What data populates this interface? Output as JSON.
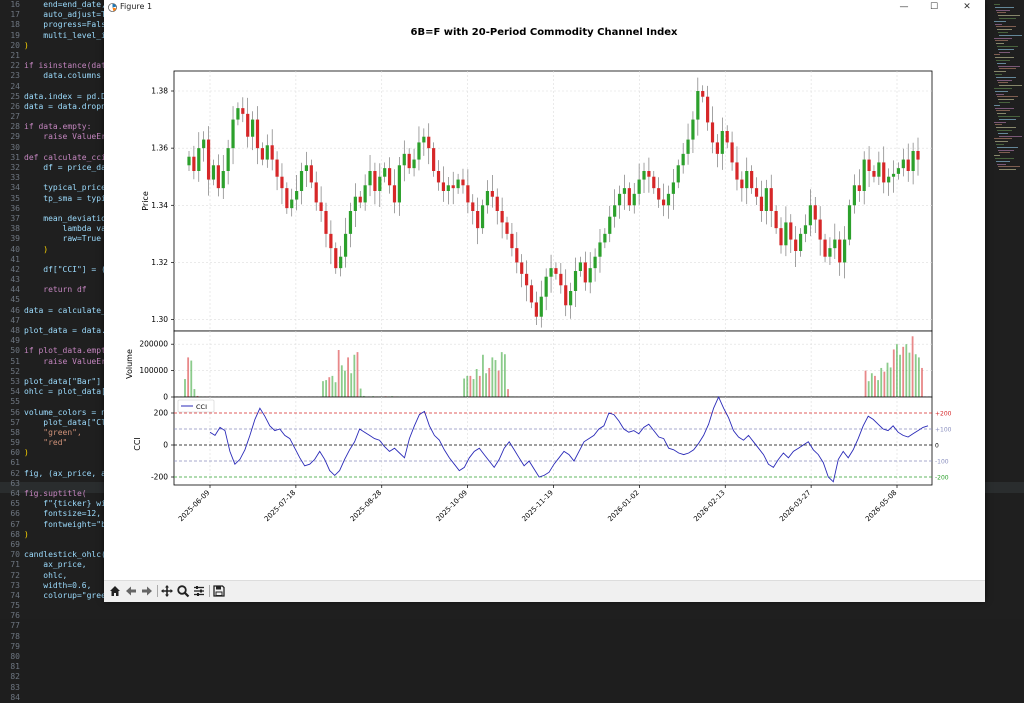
{
  "editor": {
    "line_numbers": [
      "16",
      "17",
      "18",
      "19",
      "20",
      "21",
      "22",
      "23",
      "24",
      "25",
      "26",
      "27",
      "28",
      "29",
      "30",
      "31",
      "32",
      "33",
      "34",
      "35",
      "36",
      "37",
      "38",
      "39",
      "40",
      "41",
      "42",
      "43",
      "44",
      "45",
      "46",
      "47",
      "48",
      "49",
      "50",
      "51",
      "52",
      "53",
      "54",
      "55",
      "56",
      "57",
      "58",
      "59",
      "60",
      "61",
      "62",
      "63",
      "64",
      "65",
      "66",
      "67",
      "68",
      "69",
      "70",
      "71",
      "72",
      "73",
      "74",
      "75",
      "76",
      "77",
      "78",
      "79",
      "80",
      "81",
      "82",
      "83",
      "84"
    ],
    "code_lines": [
      "    end=end_date,",
      "    auto_adjust=Tr",
      "    progress=False",
      "    multi_level_in",
      ")",
      "",
      "if isinstance(data",
      "    data.columns =",
      "",
      "data.index = pd.Da",
      "data = data.dropna",
      "",
      "if data.empty:",
      "    raise ValueErr",
      "",
      "def calculate_cci(",
      "    df = price_dat",
      "",
      "    typical_price",
      "    tp_sma = typic",
      "",
      "    mean_deviation",
      "        lambda val",
      "        raw=True",
      "    )",
      "",
      "    df[\"CCI\"] = (t",
      "",
      "    return df",
      "",
      "data = calculate_c",
      "",
      "plot_data = data.d",
      "",
      "if plot_data.empty",
      "    raise ValueErr",
      "",
      "plot_data[\"Bar\"] =",
      "ohlc = plot_data[[",
      "",
      "volume_colors = np",
      "    plot_data[\"Clo",
      "    \"green\",",
      "    \"red\"",
      ")",
      "",
      "fig, (ax_price, ax",
      "",
      "fig.suptitle(",
      "    f\"{ticker} wit",
      "    fontsize=12,",
      "    fontweight=\"bo",
      ")",
      "",
      "candlestick_ohlc(",
      "    ax_price,",
      "    ohlc,",
      "    width=0.6,",
      "    colorup=\"green\","
    ]
  },
  "window": {
    "title": "Figure 1",
    "minimize": "—",
    "maximize": "☐",
    "close": "✕"
  },
  "colors": {
    "up": "#2ca02c",
    "down": "#d62728",
    "cci_line": "#2b2bb8",
    "upper_band": "#d62728",
    "lower_band": "#2ca02c",
    "mid_band": "#8a8fbf"
  },
  "toolbar": {
    "icons": [
      "home-icon",
      "back-icon",
      "forward-icon",
      "pan-icon",
      "zoom-icon",
      "configure-icon",
      "save-icon"
    ]
  },
  "chart_data": {
    "title": "6B=F with 20-Period Commodity Channel Index",
    "grid": true,
    "x_ticks": [
      "2025-06-09",
      "2025-07-18",
      "2025-08-28",
      "2025-10-09",
      "2025-11-19",
      "2026-01-02",
      "2026-02-13",
      "2026-03-27",
      "2026-05-08"
    ],
    "price": {
      "type": "candlestick",
      "ylabel": "Price",
      "yticks": [
        "1.38",
        "1.36",
        "1.34",
        "1.32",
        "1.30"
      ],
      "ylim": [
        1.296,
        1.387
      ],
      "closes": [
        1.357,
        1.352,
        1.36,
        1.363,
        1.349,
        1.354,
        1.346,
        1.352,
        1.36,
        1.37,
        1.374,
        1.372,
        1.364,
        1.37,
        1.36,
        1.356,
        1.361,
        1.356,
        1.35,
        1.346,
        1.339,
        1.342,
        1.345,
        1.352,
        1.354,
        1.348,
        1.341,
        1.338,
        1.33,
        1.325,
        1.318,
        1.322,
        1.33,
        1.338,
        1.343,
        1.341,
        1.347,
        1.352,
        1.345,
        1.35,
        1.353,
        1.347,
        1.341,
        1.354,
        1.358,
        1.353,
        1.356,
        1.362,
        1.364,
        1.36,
        1.352,
        1.348,
        1.345,
        1.347,
        1.346,
        1.349,
        1.347,
        1.341,
        1.338,
        1.332,
        1.34,
        1.345,
        1.343,
        1.338,
        1.334,
        1.33,
        1.325,
        1.32,
        1.316,
        1.312,
        1.306,
        1.301,
        1.308,
        1.315,
        1.318,
        1.316,
        1.312,
        1.305,
        1.31,
        1.317,
        1.32,
        1.313,
        1.318,
        1.322,
        1.327,
        1.33,
        1.336,
        1.34,
        1.344,
        1.346,
        1.34,
        1.344,
        1.349,
        1.352,
        1.35,
        1.346,
        1.342,
        1.34,
        1.344,
        1.348,
        1.354,
        1.358,
        1.363,
        1.37,
        1.38,
        1.378,
        1.369,
        1.362,
        1.358,
        1.366,
        1.362,
        1.355,
        1.349,
        1.346,
        1.352,
        1.346,
        1.343,
        1.338,
        1.346,
        1.338,
        1.332,
        1.326,
        1.334,
        1.328,
        1.324,
        1.33,
        1.333,
        1.34,
        1.335,
        1.328,
        1.322,
        1.325,
        1.328,
        1.32,
        1.328,
        1.34,
        1.347,
        1.345,
        1.356,
        1.352,
        1.35,
        1.355,
        1.348,
        1.35,
        1.351,
        1.353,
        1.356,
        1.352,
        1.359,
        1.356
      ]
    },
    "volume": {
      "type": "bar",
      "ylabel": "Volume",
      "yticks": [
        "200000",
        "100000",
        "0"
      ],
      "ylim": [
        0,
        250000
      ],
      "values": [
        68000,
        150000,
        138000,
        30000,
        4000,
        2000,
        1000,
        1500,
        0,
        0,
        0,
        0,
        0,
        0,
        0,
        0,
        0,
        0,
        0,
        0,
        0,
        0,
        0,
        0,
        0,
        0,
        0,
        0,
        0,
        0,
        0,
        0,
        0,
        0,
        0,
        0,
        0,
        0,
        0,
        0,
        0,
        0,
        0,
        0,
        60000,
        64000,
        75000,
        80000,
        56000,
        178000,
        120000,
        100000,
        150000,
        90000,
        160000,
        170000,
        32000,
        4000,
        1500,
        1000,
        3000,
        1500,
        2000,
        1000,
        2500,
        1500,
        3000,
        2000,
        2000,
        0,
        0,
        0,
        0,
        0,
        0,
        0,
        0,
        0,
        0,
        0,
        0,
        0,
        0,
        0,
        0,
        0,
        0,
        0,
        0,
        70000,
        80000,
        80000,
        68000,
        106000,
        80000,
        160000,
        90000,
        110000,
        150000,
        140000,
        100000,
        170000,
        162000,
        30000,
        2000,
        1000,
        1500,
        1000,
        2000,
        0,
        0,
        0,
        0,
        0,
        0,
        0,
        0,
        0,
        0,
        0,
        0,
        0,
        0,
        0,
        0,
        0,
        0,
        0,
        0,
        0,
        0,
        0,
        0,
        0,
        0,
        0,
        0,
        0,
        0,
        0,
        0,
        0,
        0,
        0,
        0,
        0,
        0,
        0,
        0,
        0,
        0,
        0,
        0,
        0,
        0,
        0,
        0,
        0,
        0,
        0,
        0,
        0,
        0,
        0,
        0,
        0,
        0,
        0,
        0,
        0,
        0,
        0,
        0,
        0,
        0,
        0,
        0,
        0,
        0,
        0,
        0,
        0,
        0,
        0,
        0,
        0,
        0,
        0,
        0,
        0,
        0,
        0,
        0,
        0,
        0,
        0,
        0,
        0,
        0,
        0,
        0,
        0,
        0,
        0,
        0,
        0,
        0,
        0,
        0,
        0,
        0,
        0,
        0,
        0,
        0,
        0,
        0,
        100000,
        60000,
        90000,
        80000,
        64000,
        110000,
        96000,
        130000,
        112000,
        180000,
        200000,
        160000,
        190000,
        200000,
        168000,
        230000,
        162000,
        150000,
        110000
      ]
    },
    "cci": {
      "type": "line",
      "ylabel": "CCI",
      "legend": "CCI",
      "yticks": [
        "200",
        "0",
        "-200"
      ],
      "ylim": [
        -250,
        300
      ],
      "bands": [
        {
          "value": 200,
          "label": "+200"
        },
        {
          "value": 100,
          "label": "+100"
        },
        {
          "value": 0,
          "label": "0"
        },
        {
          "value": -100,
          "label": "-100"
        },
        {
          "value": -200,
          "label": "-200"
        }
      ],
      "values": [
        80,
        60,
        110,
        90,
        -40,
        -120,
        -90,
        -30,
        60,
        160,
        230,
        180,
        120,
        90,
        100,
        60,
        40,
        -20,
        -80,
        -130,
        -120,
        -90,
        -40,
        -90,
        -160,
        -190,
        -160,
        -90,
        -30,
        20,
        100,
        80,
        60,
        40,
        30,
        -10,
        -40,
        -20,
        -50,
        -80,
        40,
        120,
        190,
        210,
        120,
        60,
        30,
        -30,
        -80,
        -120,
        -160,
        -140,
        -80,
        -40,
        -20,
        -60,
        -100,
        -140,
        -90,
        -20,
        20,
        -30,
        -80,
        -130,
        -100,
        -150,
        -200,
        -190,
        -170,
        -120,
        -80,
        -40,
        -60,
        -100,
        -40,
        20,
        40,
        60,
        100,
        120,
        200,
        190,
        150,
        100,
        80,
        90,
        70,
        110,
        130,
        90,
        50,
        40,
        -20,
        -30,
        -50,
        -60,
        -50,
        -30,
        10,
        60,
        130,
        230,
        300,
        230,
        170,
        90,
        50,
        30,
        60,
        20,
        -20,
        -60,
        -120,
        -140,
        -90,
        -50,
        -80,
        -40,
        -20,
        0,
        20,
        -30,
        -60,
        -110,
        -200,
        -230,
        -90,
        -40,
        -80,
        -30,
        40,
        120,
        180,
        160,
        130,
        100,
        90,
        120,
        80,
        60,
        50,
        70,
        90,
        110,
        120
      ]
    }
  }
}
